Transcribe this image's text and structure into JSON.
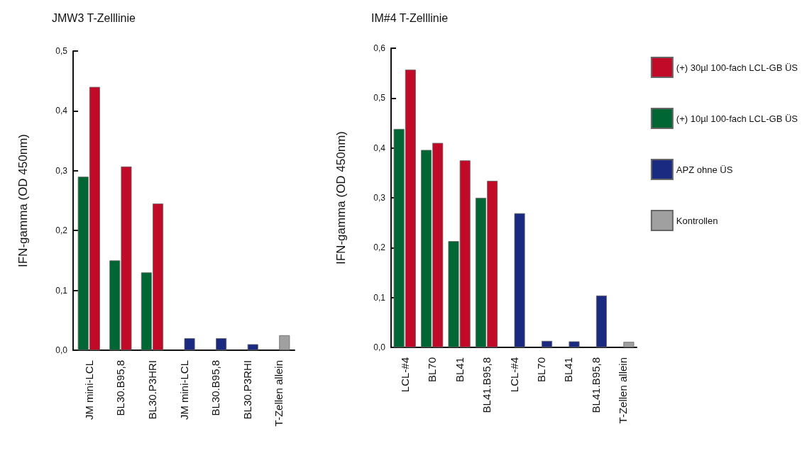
{
  "chart_data": [
    {
      "type": "bar",
      "title": "JMW3 T-Zelllinie",
      "ylabel": "IFN-gamma (OD 450nm)",
      "categories": [
        "JM mini-LCL",
        "BL30.B95,8",
        "BL30.P3HRI",
        "JM mini-LCL",
        "BL30.B95,8",
        "BL30.P3RHI",
        "T-Zellen allein"
      ],
      "series": [
        {
          "color": "#c00a28",
          "values": [
            0.44,
            0.307,
            0.245,
            null,
            null,
            null,
            null
          ]
        },
        {
          "color": "#006633",
          "values": [
            0.29,
            0.15,
            0.13,
            null,
            null,
            null,
            null
          ]
        },
        {
          "color": "#1a2a80",
          "values": [
            null,
            null,
            null,
            0.02,
            0.02,
            0.01,
            null
          ]
        },
        {
          "color": "#a0a0a0",
          "values": [
            null,
            null,
            null,
            null,
            null,
            null,
            0.025
          ]
        }
      ],
      "ylim": [
        0,
        0.5
      ],
      "yticks": [
        {
          "value": 0,
          "label": "0,0"
        },
        {
          "value": 0.1,
          "label": "0,1"
        },
        {
          "value": 0.2,
          "label": "0,2"
        },
        {
          "value": 0.3,
          "label": "0,3"
        },
        {
          "value": 0.4,
          "label": "0,4"
        },
        {
          "value": 0.5,
          "label": "0,5"
        }
      ],
      "grid": false
    },
    {
      "type": "bar",
      "title": "IM#4 T-Zelllinie",
      "ylabel": "IFN-gamma (OD 450nm)",
      "categories": [
        "LCL-#4",
        "BL70",
        "BL41",
        "BL41.B95,8",
        "LCL-#4",
        "BL70",
        "BL41",
        "BL41.B95,8",
        "T-Zellen allein"
      ],
      "series": [
        {
          "name": "(+) 30µl 100-fach LCL-GB ÜS",
          "color": "#c00a28",
          "values": [
            0.557,
            0.41,
            0.375,
            0.334,
            null,
            null,
            null,
            null,
            null
          ]
        },
        {
          "name": "(+) 10µl 100-fach LCL-GB ÜS",
          "color": "#006633",
          "values": [
            0.438,
            0.396,
            0.213,
            0.3,
            null,
            null,
            null,
            null,
            null
          ]
        },
        {
          "name": "APZ ohne ÜS",
          "color": "#1a2a80",
          "values": [
            null,
            null,
            null,
            null,
            0.269,
            0.013,
            0.012,
            0.104,
            null
          ]
        },
        {
          "name": "Kontrollen",
          "color": "#a0a0a0",
          "values": [
            null,
            null,
            null,
            null,
            null,
            null,
            null,
            null,
            0.011
          ]
        }
      ],
      "ylim": [
        0,
        0.6
      ],
      "yticks": [
        {
          "value": 0,
          "label": "0,0"
        },
        {
          "value": 0.1,
          "label": "0,1"
        },
        {
          "value": 0.2,
          "label": "0,2"
        },
        {
          "value": 0.3,
          "label": "0,3"
        },
        {
          "value": 0.4,
          "label": "0,4"
        },
        {
          "value": 0.5,
          "label": "0,5"
        },
        {
          "value": 0.6,
          "label": "0,6"
        }
      ],
      "grid": false,
      "legend": "right"
    }
  ]
}
